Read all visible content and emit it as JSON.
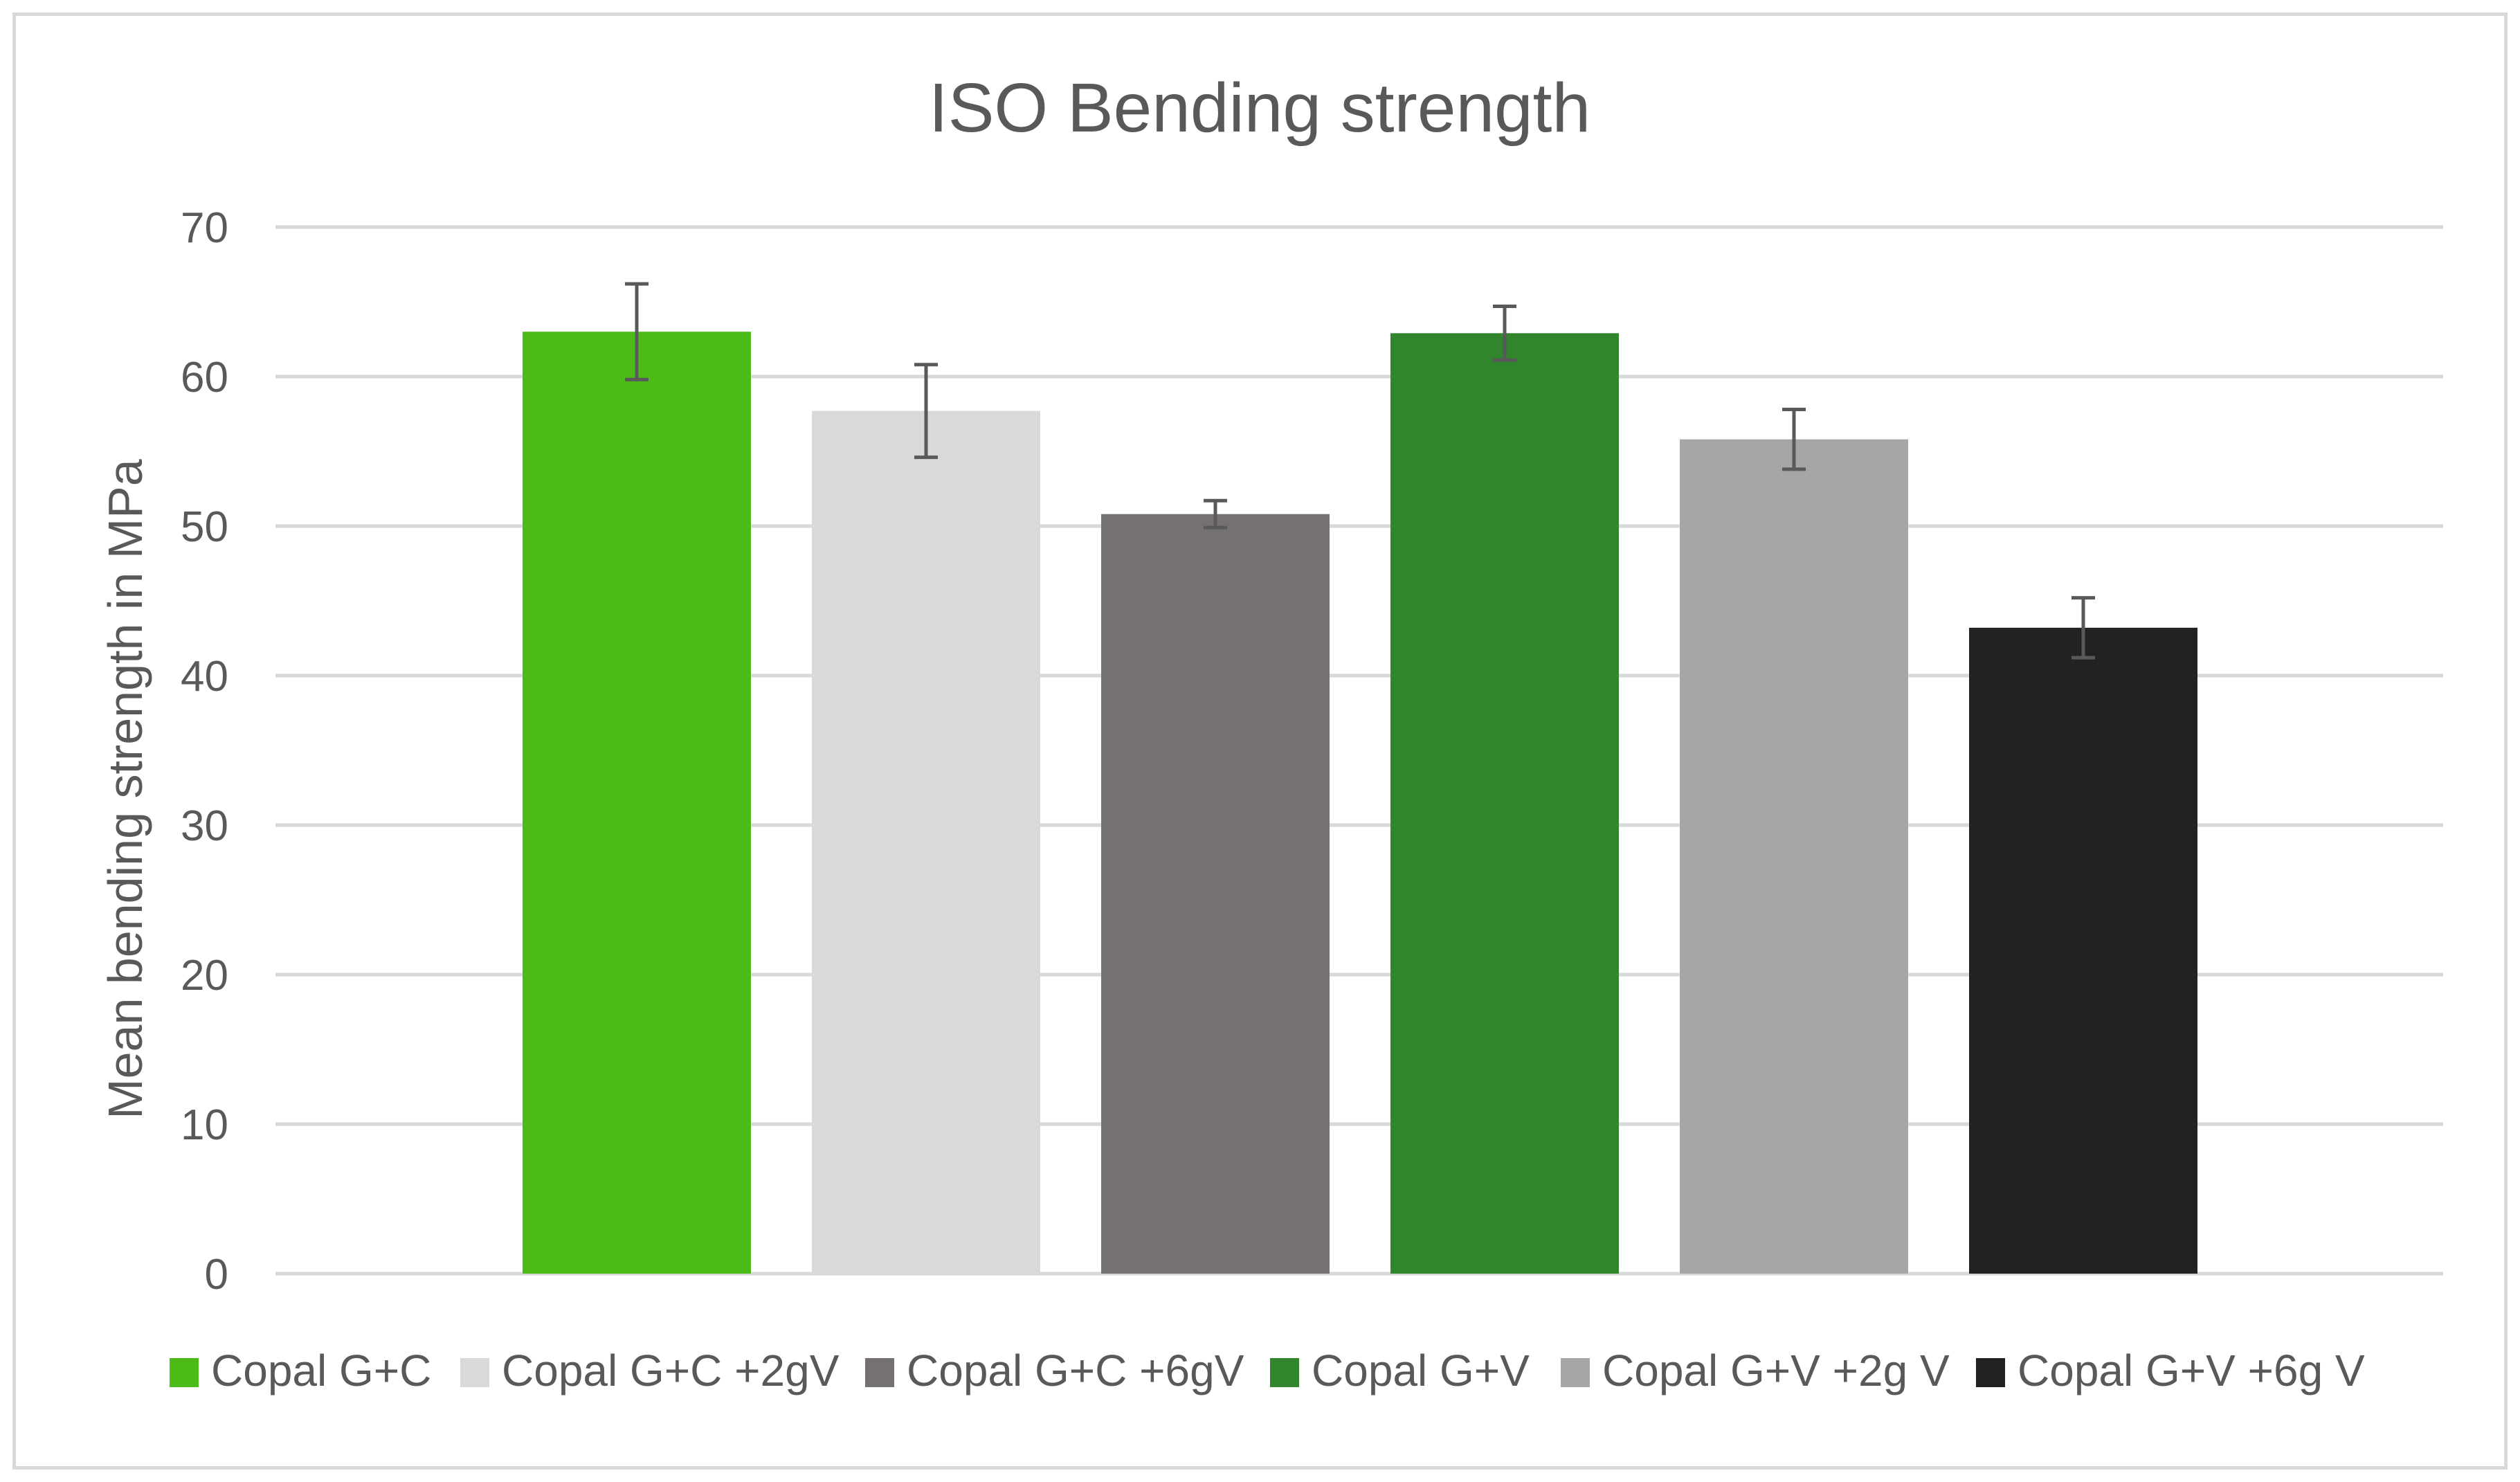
{
  "chart_data": {
    "type": "bar",
    "title": "ISO Bending strength",
    "xlabel": "",
    "ylabel": "Mean bending strength in MPa",
    "ylim": [
      0,
      70
    ],
    "yticks": [
      "0",
      "10",
      "20",
      "30",
      "40",
      "50",
      "60",
      "70"
    ],
    "grid": true,
    "legend_position": "bottom",
    "categories": [
      "Copal G+C",
      "Copal G+C +2gV",
      "Copal G+C +6gV",
      "Copal G+V",
      "Copal G+V +2g V",
      "Copal G+V +6g V"
    ],
    "values": [
      63.0,
      57.7,
      50.8,
      62.9,
      55.8,
      43.2
    ],
    "errors": [
      3.2,
      3.1,
      0.9,
      1.8,
      2.0,
      2.0
    ],
    "colors": [
      "#4dbb17",
      "#d9d9d9",
      "#767171",
      "#31852c",
      "#a6a6a6",
      "#222222"
    ],
    "axis_color": "#d9d9d9",
    "errorbar_color": "#595959"
  }
}
